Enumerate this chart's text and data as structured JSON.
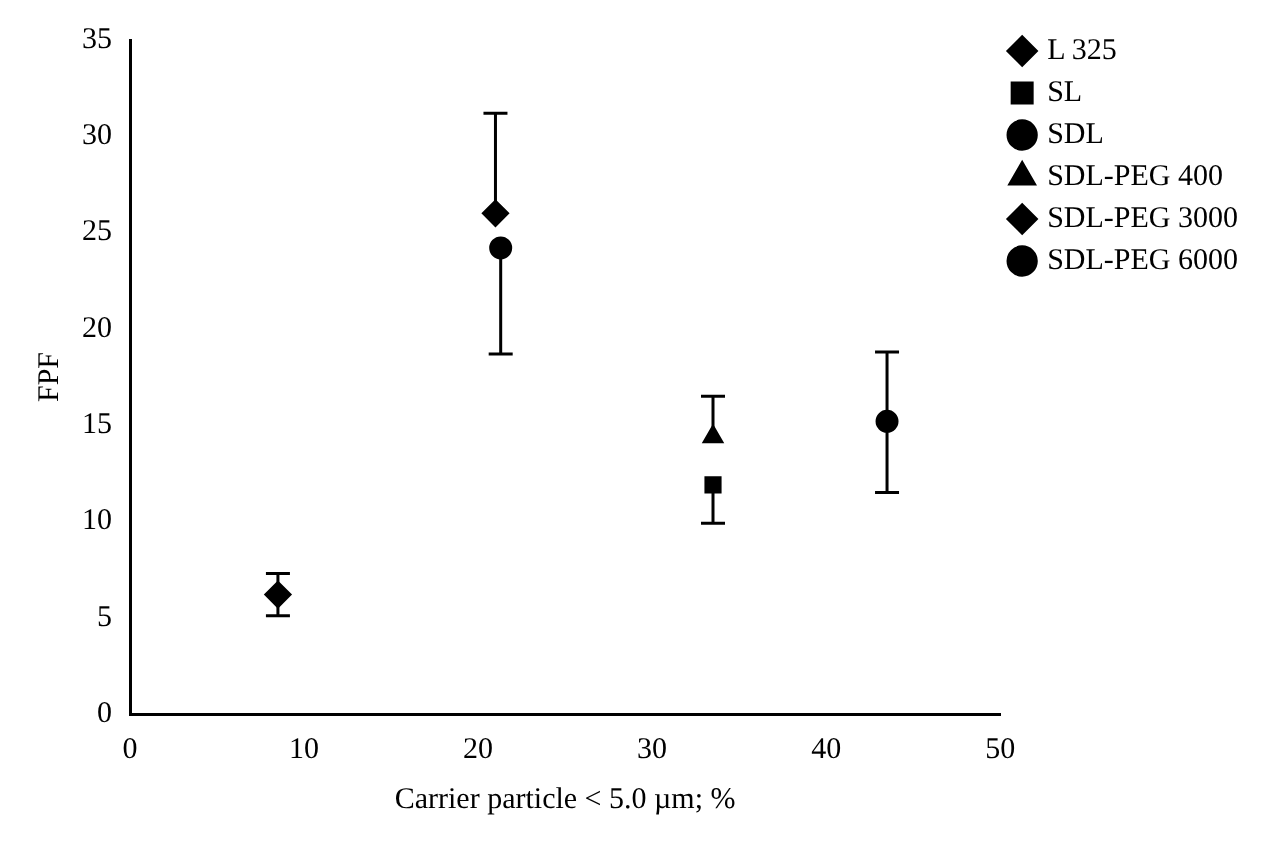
{
  "chart_data": {
    "type": "scatter",
    "xlabel": "Carrier particle < 5.0 µm; %",
    "ylabel": "FPF",
    "xlim": [
      0,
      50
    ],
    "xticks": [
      0,
      10,
      20,
      30,
      40,
      50
    ],
    "ylim": [
      0,
      35
    ],
    "yticks": [
      0,
      5,
      10,
      15,
      20,
      25,
      30,
      35
    ],
    "grid": false,
    "legend": "top right",
    "series": [
      {
        "name": "L 325",
        "color": "#000000",
        "marker": "diamond",
        "x": [
          8.5
        ],
        "values": [
          6.2
        ],
        "errors": [
          [
            5.1,
            7.3
          ]
        ]
      },
      {
        "name": "SL",
        "color": "#000000",
        "marker": "square",
        "x": [
          33.5
        ],
        "values": [
          11.9
        ],
        "errors": [
          [
            9.9,
            11.9
          ]
        ]
      },
      {
        "name": "SDL",
        "color": "#000000",
        "marker": "circle",
        "x": [
          43.5
        ],
        "values": [
          15.2
        ],
        "errors": [
          [
            11.5,
            18.8
          ]
        ]
      },
      {
        "name": "SDL-PEG 400",
        "color": "#000000",
        "marker": "triangle",
        "x": [
          33.5
        ],
        "values": [
          14.4
        ],
        "errors": [
          [
            14.4,
            16.5
          ]
        ]
      },
      {
        "name": "SDL-PEG 3000",
        "color": "#000000",
        "marker": "diamond",
        "x": [
          21
        ],
        "values": [
          26
        ],
        "errors": [
          [
            26,
            31.2
          ]
        ]
      },
      {
        "name": "SDL-PEG 6000",
        "color": "#000000",
        "marker": "circle",
        "x": [
          21.3
        ],
        "values": [
          24.2
        ],
        "errors": [
          [
            18.7,
            24.2
          ]
        ]
      }
    ]
  }
}
